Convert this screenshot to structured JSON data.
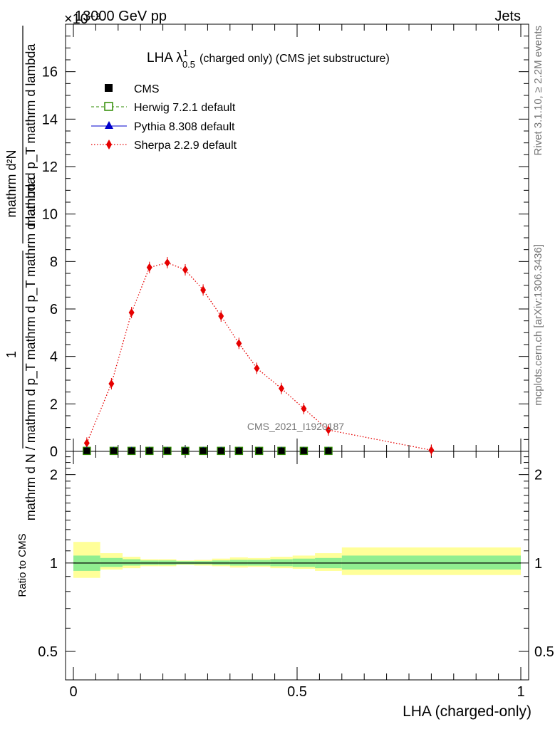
{
  "header": {
    "left_title": "13000 GeV pp",
    "right_title": "Jets",
    "y_exponent": "×10⁻³"
  },
  "side_text": {
    "rivet": "Rivet 3.1.10, ≥ 2.2M events",
    "mcplots": "mcplots.cern.ch [arXiv:1306.3436]"
  },
  "watermark": "CMS_2021_I1920187",
  "chart_data": [
    {
      "type": "line",
      "title": "LHA λ¹₀.₅ (charged only) (CMS jet substructure)",
      "title_main": "LHA λ",
      "title_sup": "1",
      "title_sub": "0.5",
      "title_rest": "(charged only) (CMS jet substructure)",
      "ylabel_top": "mathrm d²N",
      "ylabel_top2": "mathrm d p_T mathrm d lambda",
      "ylabel_bottom_num": "1",
      "ylabel_bottom": "mathrm d N / mathrm d p_T mathrm d p_T mathrm d lambda",
      "y_multiplier": 0.001,
      "xlim": [
        0,
        1
      ],
      "ylim": [
        0,
        18
      ],
      "yticks": [
        0,
        2,
        4,
        6,
        8,
        10,
        12,
        14,
        16
      ],
      "legend_position": "top-left",
      "series": [
        {
          "name": "CMS",
          "color": "#000000",
          "marker": "square",
          "x": [
            0.03,
            0.09,
            0.13,
            0.17,
            0.21,
            0.25,
            0.29,
            0.33,
            0.37,
            0.415,
            0.465,
            0.515,
            0.57
          ],
          "y": [
            0.02,
            0.02,
            0.02,
            0.02,
            0.02,
            0.02,
            0.02,
            0.02,
            0.02,
            0.02,
            0.02,
            0.02,
            0.02
          ]
        },
        {
          "name": "Herwig 7.2.1 default",
          "color": "#2e8b00",
          "marker": "open-square",
          "line": "dashed",
          "x": [
            0.03,
            0.09,
            0.13,
            0.17,
            0.21,
            0.25,
            0.29,
            0.33,
            0.37,
            0.415,
            0.465,
            0.515,
            0.57
          ],
          "y": [
            0.02,
            0.02,
            0.02,
            0.02,
            0.02,
            0.02,
            0.02,
            0.02,
            0.02,
            0.02,
            0.02,
            0.02,
            0.02
          ]
        },
        {
          "name": "Pythia 8.308 default",
          "color": "#0000cc",
          "marker": "triangle",
          "line": "solid",
          "x": [
            0.03,
            0.09,
            0.13,
            0.17,
            0.21,
            0.25,
            0.29,
            0.33,
            0.37,
            0.415,
            0.465,
            0.515,
            0.57
          ],
          "y": [
            0.02,
            0.02,
            0.02,
            0.02,
            0.02,
            0.02,
            0.02,
            0.02,
            0.02,
            0.02,
            0.02,
            0.02,
            0.02
          ]
        },
        {
          "name": "Sherpa 2.2.9 default",
          "color": "#e60000",
          "marker": "diamond",
          "line": "dotted",
          "x": [
            0.03,
            0.085,
            0.13,
            0.17,
            0.21,
            0.25,
            0.29,
            0.33,
            0.37,
            0.41,
            0.465,
            0.515,
            0.57,
            0.8
          ],
          "y": [
            0.35,
            2.85,
            5.85,
            7.75,
            7.95,
            7.65,
            6.8,
            5.7,
            4.55,
            3.5,
            2.65,
            1.8,
            0.9,
            0.05
          ]
        }
      ]
    },
    {
      "type": "area",
      "ylabel": "Ratio to CMS",
      "xlabel": "LHA (charged-only)",
      "xlim": [
        0,
        1
      ],
      "ylim": [
        0.4,
        2.4
      ],
      "y_scale": "log",
      "yticks": [
        0.5,
        1,
        2
      ],
      "xticks": [
        0,
        0.5,
        1
      ],
      "xtick_labels": [
        "0",
        "0.5",
        "1"
      ],
      "ytick_labels": [
        "0.5",
        "1",
        "2"
      ],
      "bins": [
        {
          "x": [
            0.0,
            0.06
          ],
          "stat": [
            0.94,
            1.06
          ],
          "total": [
            0.89,
            1.18
          ]
        },
        {
          "x": [
            0.06,
            0.11
          ],
          "stat": [
            0.97,
            1.04
          ],
          "total": [
            0.95,
            1.08
          ]
        },
        {
          "x": [
            0.11,
            0.15
          ],
          "stat": [
            0.98,
            1.03
          ],
          "total": [
            0.96,
            1.05
          ]
        },
        {
          "x": [
            0.15,
            0.19
          ],
          "stat": [
            0.985,
            1.02
          ],
          "total": [
            0.975,
            1.03
          ]
        },
        {
          "x": [
            0.19,
            0.23
          ],
          "stat": [
            0.985,
            1.02
          ],
          "total": [
            0.975,
            1.03
          ]
        },
        {
          "x": [
            0.23,
            0.27
          ],
          "stat": [
            0.99,
            1.015
          ],
          "total": [
            0.985,
            1.02
          ]
        },
        {
          "x": [
            0.27,
            0.31
          ],
          "stat": [
            0.99,
            1.015
          ],
          "total": [
            0.98,
            1.025
          ]
        },
        {
          "x": [
            0.31,
            0.35
          ],
          "stat": [
            0.985,
            1.02
          ],
          "total": [
            0.975,
            1.035
          ]
        },
        {
          "x": [
            0.35,
            0.39
          ],
          "stat": [
            0.98,
            1.025
          ],
          "total": [
            0.965,
            1.045
          ]
        },
        {
          "x": [
            0.39,
            0.44
          ],
          "stat": [
            0.98,
            1.025
          ],
          "total": [
            0.97,
            1.04
          ]
        },
        {
          "x": [
            0.44,
            0.49
          ],
          "stat": [
            0.975,
            1.03
          ],
          "total": [
            0.96,
            1.05
          ]
        },
        {
          "x": [
            0.49,
            0.54
          ],
          "stat": [
            0.97,
            1.035
          ],
          "total": [
            0.955,
            1.06
          ]
        },
        {
          "x": [
            0.54,
            0.6
          ],
          "stat": [
            0.96,
            1.04
          ],
          "total": [
            0.94,
            1.08
          ]
        },
        {
          "x": [
            0.6,
            1.0
          ],
          "stat": [
            0.95,
            1.06
          ],
          "total": [
            0.91,
            1.13
          ]
        }
      ]
    }
  ],
  "colors": {
    "stat_band": "#90ee90",
    "total_band": "#ffff99"
  }
}
